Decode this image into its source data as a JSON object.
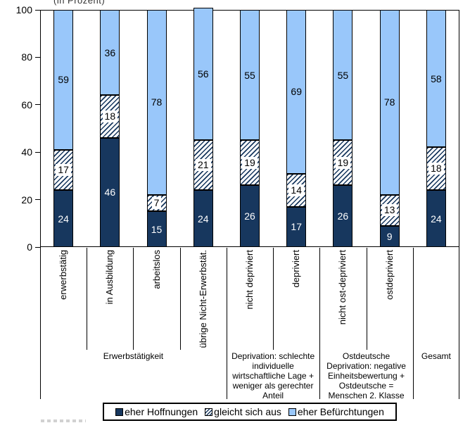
{
  "title_fragment": "(in Prozent)",
  "chart_data": {
    "type": "bar",
    "stacked": true,
    "unit": "percent",
    "title": "(in Prozent)",
    "ylim": [
      0,
      100
    ],
    "yticks": [
      0,
      20,
      40,
      60,
      80,
      100
    ],
    "grid": false,
    "legend_position": "bottom",
    "categories": [
      "erwerbstätig",
      "in Ausbildung",
      "arbeitslos",
      "übrige Nicht-Erwerbstät.",
      "nicht depriviert",
      "depriviert",
      "nicht ost-depriviert",
      "ostdepriviert",
      ""
    ],
    "series": [
      {
        "name": "eher Hoffnungen",
        "fill": "solid",
        "color": "#17375E",
        "values": [
          24,
          46,
          15,
          24,
          26,
          17,
          26,
          9,
          24
        ]
      },
      {
        "name": "gleicht sich aus",
        "fill": "hatch",
        "color": "#17375E",
        "values": [
          17,
          18,
          7,
          21,
          19,
          14,
          19,
          13,
          18
        ]
      },
      {
        "name": "eher Befürchtungen",
        "fill": "solid",
        "color": "#99C7FA",
        "values": [
          59,
          36,
          78,
          56,
          55,
          69,
          55,
          78,
          58
        ]
      }
    ],
    "groups": [
      {
        "label": "Erwerbstätigkeit",
        "span": 4
      },
      {
        "label": "Deprivation: schlechte\nindividuelle\nwirtschaftliche Lage +\nweniger als gerechter\nAnteil",
        "span": 2
      },
      {
        "label": "Ostdeutsche\nDeprivation: negative\nEinheitsbewertung +\nOstdeutsche =\nMenschen 2. Klasse",
        "span": 2
      },
      {
        "label": "Gesamt",
        "span": 1
      }
    ]
  },
  "legend": {
    "items": [
      "eher Hoffnungen",
      "gleicht sich aus",
      "eher Befürchtungen"
    ]
  },
  "colors": {
    "hope": "#17375E",
    "fear": "#99C7FA",
    "axis": "#000000",
    "background": "#FFFFFF"
  }
}
